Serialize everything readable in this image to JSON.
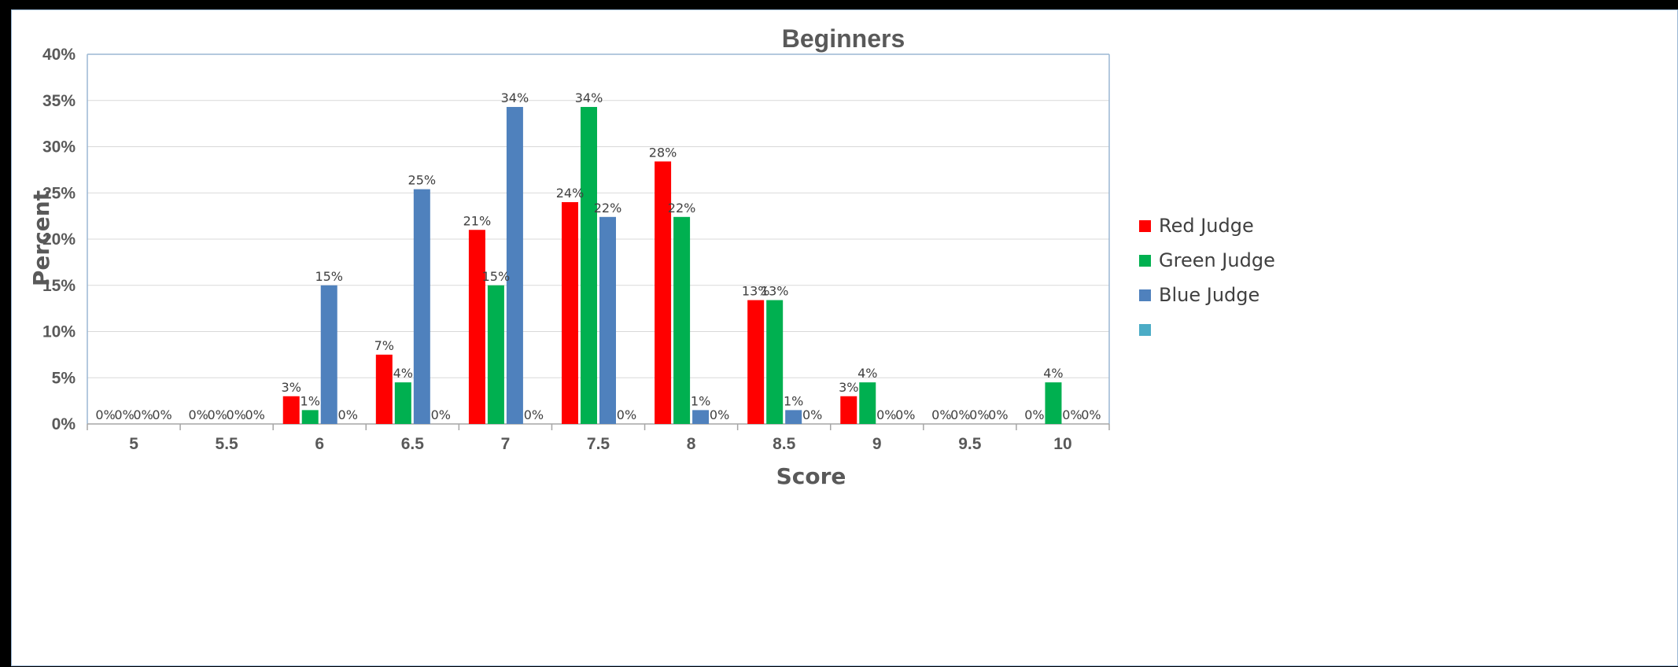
{
  "chart_data": {
    "type": "bar",
    "title": "Beginners",
    "xlabel": "Score",
    "ylabel": "Percent",
    "categories": [
      "5",
      "5.5",
      "6",
      "6.5",
      "7",
      "7.5",
      "8",
      "8.5",
      "9",
      "9.5",
      "10"
    ],
    "ylim": [
      0,
      40
    ],
    "yticks": [
      "0%",
      "5%",
      "10%",
      "15%",
      "20%",
      "25%",
      "30%",
      "35%",
      "40%"
    ],
    "grid": true,
    "legend_position": "right",
    "series": [
      {
        "name": "Red Judge",
        "color": "#ff0000",
        "values": [
          0,
          0,
          3,
          7.5,
          21,
          24,
          28.4,
          13.4,
          3,
          0,
          0
        ],
        "labels": [
          "0%",
          "0%",
          "3%",
          "7%",
          "21%",
          "24%",
          "28%",
          "13%",
          "3%",
          "0%",
          "0%"
        ]
      },
      {
        "name": "Green Judge",
        "color": "#00b050",
        "values": [
          0,
          0,
          1.5,
          4.5,
          15,
          34.3,
          22.4,
          13.4,
          4.5,
          0,
          4.5
        ],
        "labels": [
          "0%",
          "0%",
          "1%",
          "4%",
          "15%",
          "34%",
          "22%",
          "13%",
          "4%",
          "0%",
          "4%"
        ]
      },
      {
        "name": "Blue Judge",
        "color": "#4f81bd",
        "values": [
          0,
          0,
          15,
          25.4,
          34.3,
          22.4,
          1.5,
          1.5,
          0,
          0,
          0
        ],
        "labels": [
          "0%",
          "0%",
          "15%",
          "25%",
          "34%",
          "22%",
          "1%",
          "1%",
          "0%",
          "0%",
          "0%"
        ]
      },
      {
        "name": "",
        "color": "#4bacc6",
        "values": [
          0,
          0,
          0,
          0,
          0,
          0,
          0,
          0,
          0,
          0,
          0
        ],
        "labels": [
          "0%",
          "0%",
          "0%",
          "0%",
          "0%",
          "0%",
          "0%",
          "0%",
          "0%",
          "0%",
          "0%"
        ]
      }
    ]
  }
}
